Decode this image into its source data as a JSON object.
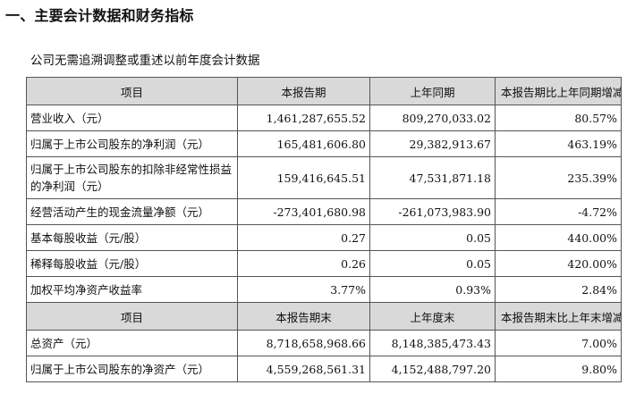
{
  "section_title": "一、主要会计数据和财务指标",
  "subtitle": "公司无需追溯调整或重述以前年度会计数据",
  "table": {
    "header1": [
      "项目",
      "本报告期",
      "上年同期",
      "本报告期比上年同期增减"
    ],
    "rows1": [
      {
        "label": "营业收入（元）",
        "current": "1,461,287,655.52",
        "prior": "809,270,033.02",
        "change": "80.57%"
      },
      {
        "label": "归属于上市公司股东的净利润（元）",
        "current": "165,481,606.80",
        "prior": "29,382,913.67",
        "change": "463.19%"
      },
      {
        "label": "归属于上市公司股东的扣除非经常性损益的净利润（元）",
        "current": "159,416,645.51",
        "prior": "47,531,871.18",
        "change": "235.39%"
      },
      {
        "label": "经营活动产生的现金流量净额（元）",
        "current": "-273,401,680.98",
        "prior": "-261,073,983.90",
        "change": "-4.72%"
      },
      {
        "label": "基本每股收益（元/股）",
        "current": "0.27",
        "prior": "0.05",
        "change": "440.00%"
      },
      {
        "label": "稀释每股收益（元/股）",
        "current": "0.26",
        "prior": "0.05",
        "change": "420.00%"
      },
      {
        "label": "加权平均净资产收益率",
        "current": "3.77%",
        "prior": "0.93%",
        "change": "2.84%"
      }
    ],
    "header2": [
      "项目",
      "本报告期末",
      "上年度末",
      "本报告期末比上年末增减"
    ],
    "rows2": [
      {
        "label": "总资产（元）",
        "current": "8,718,658,968.66",
        "prior": "8,148,385,473.43",
        "change": "7.00%"
      },
      {
        "label": "归属于上市公司股东的净资产（元）",
        "current": "4,559,268,561.31",
        "prior": "4,152,488,797.20",
        "change": "9.80%"
      }
    ]
  }
}
